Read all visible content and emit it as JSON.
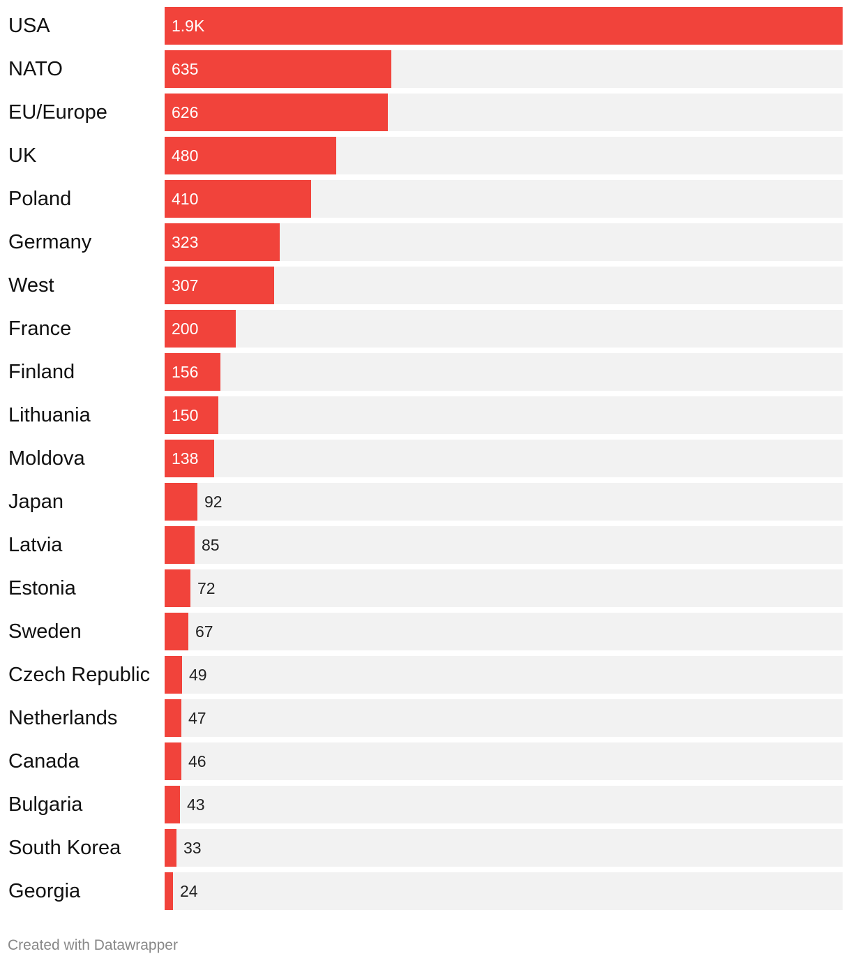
{
  "chart_data": {
    "type": "bar",
    "orientation": "horizontal",
    "categories": [
      "USA",
      "NATO",
      "EU/Europe",
      "UK",
      "Poland",
      "Germany",
      "West",
      "France",
      "Finland",
      "Lithuania",
      "Moldova",
      "Japan",
      "Latvia",
      "Estonia",
      "Sweden",
      "Czech Republic",
      "Netherlands",
      "Canada",
      "Bulgaria",
      "South Korea",
      "Georgia"
    ],
    "values": [
      1900,
      635,
      626,
      480,
      410,
      323,
      307,
      200,
      156,
      150,
      138,
      92,
      85,
      72,
      67,
      49,
      47,
      46,
      43,
      33,
      24
    ],
    "value_labels": [
      "1.9K",
      "635",
      "626",
      "480",
      "410",
      "323",
      "307",
      "200",
      "156",
      "150",
      "138",
      "92",
      "85",
      "72",
      "67",
      "49",
      "47",
      "46",
      "43",
      "33",
      "24"
    ],
    "xlim": [
      0,
      1900
    ],
    "grid": false,
    "colors": {
      "bar": "#f1433b",
      "track": "#f2f2f2"
    }
  },
  "footer": {
    "credit": "Created with Datawrapper"
  }
}
